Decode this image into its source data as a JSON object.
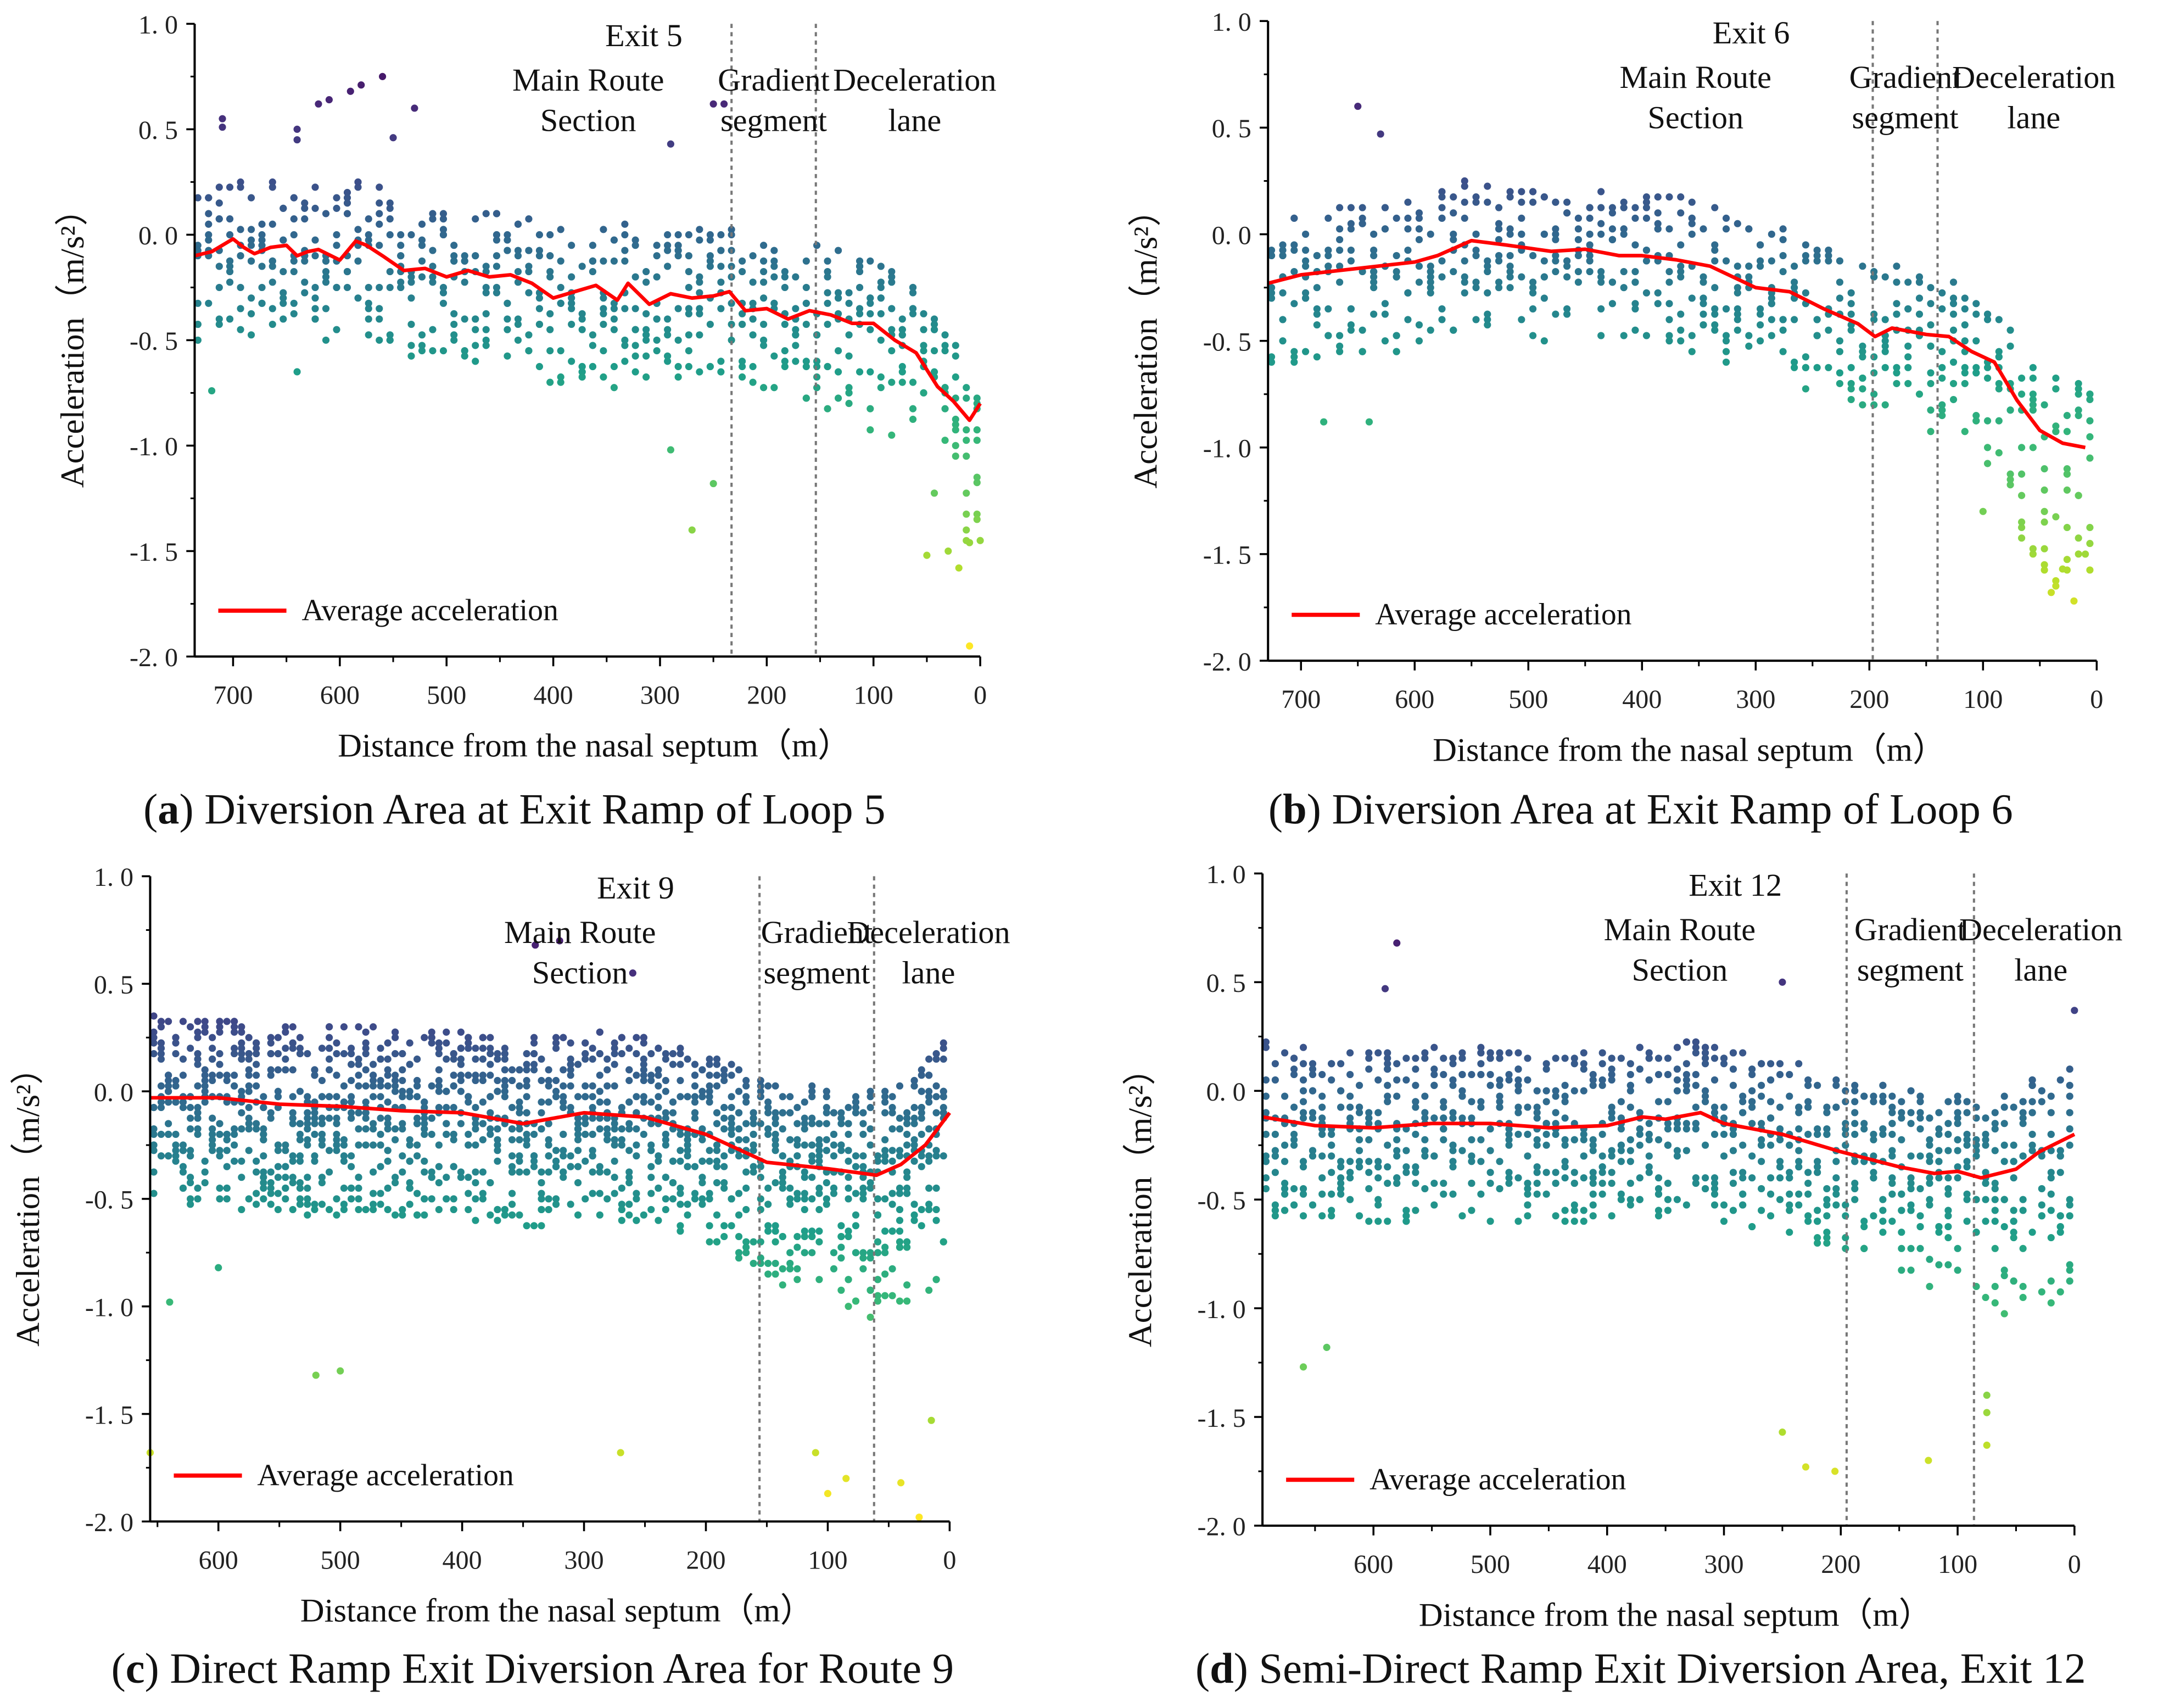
{
  "chart_data": [
    {
      "id": "a",
      "type": "scatter",
      "title": "Exit 5",
      "caption_letter": "a",
      "caption_text": ") Diversion Area at Exit Ramp of Loop 5",
      "xlabel": "Distance from the nasal septum（m）",
      "ylabel": "Acceleration（m/s²）",
      "xlim": [
        736,
        0
      ],
      "ylim": [
        -2.0,
        1.0
      ],
      "xticks": [
        700,
        600,
        500,
        400,
        300,
        200,
        100,
        0
      ],
      "yticks": [
        1.0,
        0.5,
        0.0,
        -0.5,
        -1.0,
        -1.5,
        -2.0
      ],
      "ytick_labels": [
        "1. 0",
        "0. 5",
        "0. 0",
        "-0. 5",
        "-1. 0",
        "-1. 5",
        "-2. 0"
      ],
      "section_boundaries": [
        233,
        154
      ],
      "sections": [
        "Main Route",
        "Section",
        "Gradient",
        "segment",
        "Deceleration",
        "lane"
      ],
      "legend": "Average acceleration",
      "legend_color": "#ff0000",
      "average_acceleration": {
        "x": [
          736,
          720,
          700,
          690,
          680,
          665,
          650,
          640,
          630,
          620,
          600,
          585,
          575,
          560,
          540,
          520,
          500,
          480,
          460,
          440,
          420,
          400,
          380,
          360,
          340,
          330,
          310,
          290,
          270,
          250,
          235,
          220,
          200,
          180,
          160,
          140,
          120,
          100,
          80,
          60,
          40,
          25,
          10,
          0
        ],
        "y": [
          -0.1,
          -0.08,
          -0.02,
          -0.06,
          -0.09,
          -0.06,
          -0.05,
          -0.1,
          -0.08,
          -0.07,
          -0.12,
          -0.03,
          -0.05,
          -0.1,
          -0.17,
          -0.16,
          -0.2,
          -0.17,
          -0.2,
          -0.19,
          -0.23,
          -0.3,
          -0.27,
          -0.24,
          -0.31,
          -0.23,
          -0.33,
          -0.28,
          -0.3,
          -0.29,
          -0.27,
          -0.36,
          -0.35,
          -0.4,
          -0.36,
          -0.38,
          -0.42,
          -0.42,
          -0.5,
          -0.56,
          -0.72,
          -0.79,
          -0.88,
          -0.8
        ]
      },
      "scatter_spread": {
        "step": 10,
        "per_column": 9,
        "above": 0.32,
        "below": 0.42,
        "tail_below": 0.45,
        "seed": 5
      },
      "outliers": [
        [
          710,
          0.55
        ],
        [
          710,
          0.51
        ],
        [
          640,
          0.5
        ],
        [
          640,
          0.45
        ],
        [
          620,
          0.62
        ],
        [
          610,
          0.64
        ],
        [
          590,
          0.68
        ],
        [
          580,
          0.71
        ],
        [
          560,
          0.75
        ],
        [
          550,
          0.46
        ],
        [
          530,
          0.6
        ],
        [
          250,
          0.62
        ],
        [
          240,
          0.62
        ],
        [
          290,
          0.43
        ],
        [
          270,
          -1.4
        ],
        [
          290,
          -1.02
        ],
        [
          250,
          -1.18
        ],
        [
          10,
          -1.95
        ],
        [
          20,
          -1.58
        ],
        [
          50,
          -1.52
        ],
        [
          30,
          -1.5
        ],
        [
          10,
          -1.46
        ],
        [
          0,
          -1.45
        ],
        [
          720,
          -0.74
        ],
        [
          640,
          -0.65
        ]
      ]
    },
    {
      "id": "b",
      "type": "scatter",
      "title": "Exit 6",
      "caption_letter": "b",
      "caption_text": ") Diversion Area at Exit Ramp of Loop 6",
      "xlabel": "Distance from the nasal septum（m）",
      "ylabel": "Acceleration（m/s²）",
      "xlim": [
        729,
        0
      ],
      "ylim": [
        -2.0,
        1.0
      ],
      "xticks": [
        700,
        600,
        500,
        400,
        300,
        200,
        100,
        0
      ],
      "yticks": [
        1.0,
        0.5,
        0.0,
        -0.5,
        -1.0,
        -1.5,
        -2.0
      ],
      "ytick_labels": [
        "1. 0",
        "0. 5",
        "0. 0",
        "-0. 5",
        "-1. 0",
        "-1. 5",
        "-2. 0"
      ],
      "section_boundaries": [
        197,
        140
      ],
      "sections": [
        "Main Route",
        "Section",
        "Gradient",
        "segment",
        "Deceleration",
        "lane"
      ],
      "legend": "Average acceleration",
      "legend_color": "#ff0000",
      "average_acceleration": {
        "x": [
          729,
          700,
          650,
          600,
          580,
          550,
          520,
          480,
          450,
          420,
          400,
          370,
          340,
          300,
          270,
          240,
          210,
          195,
          180,
          150,
          130,
          110,
          90,
          70,
          50,
          30,
          10
        ],
        "y": [
          -0.23,
          -0.19,
          -0.16,
          -0.13,
          -0.1,
          -0.03,
          -0.05,
          -0.08,
          -0.07,
          -0.1,
          -0.1,
          -0.12,
          -0.15,
          -0.25,
          -0.27,
          -0.35,
          -0.42,
          -0.48,
          -0.44,
          -0.47,
          -0.48,
          -0.55,
          -0.6,
          -0.78,
          -0.92,
          -0.98,
          -1.0
        ]
      },
      "scatter_spread": {
        "step": 10,
        "per_column": 9,
        "above": 0.3,
        "below": 0.42,
        "tail_below": 0.5,
        "seed": 6
      },
      "outliers": [
        [
          650,
          0.6
        ],
        [
          630,
          0.47
        ],
        [
          680,
          -0.88
        ],
        [
          640,
          -0.88
        ],
        [
          20,
          -1.72
        ],
        [
          40,
          -1.68
        ],
        [
          30,
          -1.57
        ],
        [
          10,
          -1.5
        ],
        [
          100,
          -1.3
        ]
      ]
    },
    {
      "id": "c",
      "type": "scatter",
      "title": "Exit 9",
      "caption_letter": "c",
      "caption_text": ") Direct Ramp Exit Diversion Area for Route 9",
      "xlabel": "Distance from the nasal septum（m）",
      "ylabel": "Acceleration（m/s²）",
      "xlim": [
        656,
        0
      ],
      "ylim": [
        -2.0,
        1.0
      ],
      "xticks": [
        600,
        500,
        400,
        300,
        200,
        100,
        0
      ],
      "yticks": [
        1.0,
        0.5,
        0.0,
        -0.5,
        -1.0,
        -1.5,
        -2.0
      ],
      "ytick_labels": [
        "1. 0",
        "0. 5",
        "0. 0",
        "-0. 5",
        "-1. 0",
        "-1. 5",
        "-2. 0"
      ],
      "section_boundaries": [
        156,
        62
      ],
      "sections": [
        "Main Route",
        "Section",
        "Gradient",
        "segment",
        "Deceleration",
        "lane"
      ],
      "legend": "Average acceleration",
      "legend_color": "#ff0000",
      "average_acceleration": {
        "x": [
          656,
          600,
          550,
          500,
          450,
          400,
          350,
          300,
          250,
          200,
          150,
          100,
          60,
          40,
          20,
          0
        ],
        "y": [
          -0.03,
          -0.03,
          -0.06,
          -0.07,
          -0.09,
          -0.1,
          -0.15,
          -0.1,
          -0.12,
          -0.2,
          -0.33,
          -0.36,
          -0.39,
          -0.34,
          -0.25,
          -0.1
        ]
      },
      "scatter_spread": {
        "step": 6,
        "per_column": 14,
        "above": 0.38,
        "below": 0.5,
        "tail_below": 0.55,
        "seed": 9
      },
      "outliers": [
        [
          656,
          -1.68
        ],
        [
          500,
          -1.3
        ],
        [
          520,
          -1.32
        ],
        [
          270,
          -1.68
        ],
        [
          100,
          -1.87
        ],
        [
          110,
          -1.68
        ],
        [
          85,
          -1.8
        ],
        [
          40,
          -1.82
        ],
        [
          25,
          -1.98
        ],
        [
          15,
          -1.53
        ],
        [
          320,
          0.7
        ],
        [
          340,
          0.68
        ],
        [
          260,
          0.55
        ],
        [
          640,
          -0.98
        ],
        [
          600,
          -0.82
        ]
      ]
    },
    {
      "id": "d",
      "type": "scatter",
      "title": "Exit 12",
      "caption_letter": "d",
      "caption_text": ") Semi-Direct Ramp Exit Diversion Area, Exit 12",
      "xlabel": "Distance from the nasal septum（m）",
      "ylabel": "Acceleration（m/s²）",
      "xlim": [
        695,
        0
      ],
      "ylim": [
        -2.0,
        1.0
      ],
      "xticks": [
        600,
        500,
        400,
        300,
        200,
        100,
        0
      ],
      "yticks": [
        1.0,
        0.5,
        0.0,
        -0.5,
        -1.0,
        -1.5,
        -2.0
      ],
      "ytick_labels": [
        "1. 0",
        "0. 5",
        "0. 0",
        "-0. 5",
        "-1. 0",
        "-1. 5",
        "-2. 0"
      ],
      "section_boundaries": [
        195,
        86
      ],
      "sections": [
        "Main Route",
        "Section",
        "Gradient",
        "segment",
        "Deceleration",
        "lane"
      ],
      "legend": "Average acceleration",
      "legend_color": "#ff0000",
      "average_acceleration": {
        "x": [
          695,
          650,
          600,
          550,
          500,
          450,
          400,
          370,
          350,
          320,
          300,
          250,
          200,
          150,
          120,
          100,
          80,
          50,
          30,
          0
        ],
        "y": [
          -0.12,
          -0.16,
          -0.17,
          -0.15,
          -0.15,
          -0.17,
          -0.16,
          -0.12,
          -0.13,
          -0.1,
          -0.15,
          -0.2,
          -0.28,
          -0.35,
          -0.38,
          -0.37,
          -0.4,
          -0.36,
          -0.28,
          -0.2
        ]
      },
      "scatter_spread": {
        "step": 8,
        "per_column": 12,
        "above": 0.35,
        "below": 0.45,
        "tail_below": 0.5,
        "seed": 12
      },
      "outliers": [
        [
          580,
          0.68
        ],
        [
          250,
          0.5
        ],
        [
          660,
          -1.27
        ],
        [
          640,
          -1.18
        ],
        [
          250,
          -1.57
        ],
        [
          230,
          -1.73
        ],
        [
          205,
          -1.75
        ],
        [
          125,
          -1.7
        ],
        [
          75,
          -1.63
        ],
        [
          75,
          -1.48
        ],
        [
          75,
          -1.4
        ],
        [
          0,
          0.37
        ],
        [
          590,
          0.47
        ]
      ]
    }
  ]
}
